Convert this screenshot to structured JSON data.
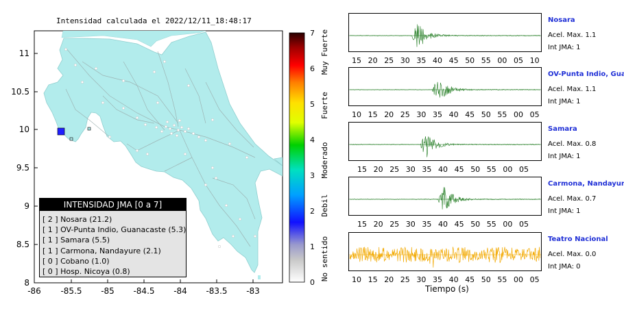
{
  "map": {
    "title": "Intensidad calculada el 2022/12/11_18:48:17",
    "x_ticks": [
      "-86",
      "-85.5",
      "-85",
      "-84.5",
      "-84",
      "-83.5",
      "-83"
    ],
    "y_ticks": [
      "11",
      "10.5",
      "10",
      "9.5",
      "9",
      "8.5",
      "8"
    ],
    "legend_title": "INTENSIDAD JMA [0 a 7]",
    "legend_items": [
      "[ 2 ]  Nosara (21.2)",
      "[ 1 ]  OV-Punta Indio, Guanacaste (5.3)",
      "[ 1 ]  Samara (5.5)",
      "[ 1 ]  Carmona, Nandayure (2.1)",
      "[ 0 ]  Cobano (1.0)",
      "[ 0 ]  Hosp. Nicoya (0.8)"
    ],
    "land_color": "#b2ecec",
    "marked_station_color": "#1f1fff"
  },
  "colorbar": {
    "ticks": [
      "7",
      "6",
      "5",
      "4",
      "3",
      "2",
      "1",
      "0"
    ],
    "labels": [
      "Muy Fuerte",
      "Fuerte",
      "Moderado",
      "Debil",
      "No sentido"
    ]
  },
  "stations": [
    {
      "name": "Nosara",
      "acel": "Acel. Max. 1.1",
      "int": "Int JMA: 1",
      "ticks": [
        "15",
        "20",
        "25",
        "30",
        "35",
        "40",
        "45",
        "50",
        "55",
        "00",
        "05",
        "10"
      ],
      "color": "#1f7a1f"
    },
    {
      "name": "OV-Punta Indio, Guana",
      "acel": "Acel. Max. 1.1",
      "int": "Int JMA: 1",
      "ticks": [
        "10",
        "15",
        "20",
        "25",
        "30",
        "35",
        "40",
        "45",
        "50",
        "55",
        "00",
        "05"
      ],
      "color": "#1f7a1f"
    },
    {
      "name": "Samara",
      "acel": "Acel. Max. 0.8",
      "int": "Int JMA: 1",
      "ticks": [
        "15",
        "20",
        "25",
        "30",
        "35",
        "40",
        "45",
        "50",
        "55",
        "00",
        "05"
      ],
      "color": "#1f7a1f"
    },
    {
      "name": "Carmona, Nandayure",
      "acel": "Acel. Max. 0.7",
      "int": "Int JMA: 1",
      "ticks": [
        "15",
        "20",
        "25",
        "30",
        "35",
        "40",
        "45",
        "50",
        "55",
        "00",
        "05"
      ],
      "color": "#1f7a1f"
    },
    {
      "name": "Teatro Nacional",
      "acel": "Acel. Max. 0.0",
      "int": "Int JMA: 0",
      "ticks": [
        "10",
        "15",
        "20",
        "25",
        "30",
        "35",
        "40",
        "45",
        "50",
        "55",
        "00",
        "05"
      ],
      "color": "#f2a900"
    }
  ],
  "xlabel": "Tiempo (s)",
  "chart_data": [
    {
      "type": "map",
      "title": "Intensidad calculada el 2022/12/11_18:48:17",
      "xlim": [
        -86,
        -82.6
      ],
      "ylim": [
        8,
        11.3
      ],
      "legend": [
        {
          "station": "Nosara",
          "intensity": 2,
          "value": 21.2
        },
        {
          "station": "OV-Punta Indio, Guanacaste",
          "intensity": 1,
          "value": 5.3
        },
        {
          "station": "Samara",
          "intensity": 1,
          "value": 5.5
        },
        {
          "station": "Carmona, Nandayure",
          "intensity": 1,
          "value": 2.1
        },
        {
          "station": "Cobano",
          "intensity": 0,
          "value": 1.0
        },
        {
          "station": "Hosp. Nicoya",
          "intensity": 0,
          "value": 0.8
        }
      ],
      "colorbar_range": [
        0,
        7
      ]
    },
    {
      "type": "line",
      "xlabel": "Tiempo (s)",
      "series": [
        {
          "name": "Nosara",
          "acel_max": 1.1,
          "int_jma": 1
        },
        {
          "name": "OV-Punta Indio, Guana",
          "acel_max": 1.1,
          "int_jma": 1
        },
        {
          "name": "Samara",
          "acel_max": 0.8,
          "int_jma": 1
        },
        {
          "name": "Carmona, Nandayure",
          "acel_max": 0.7,
          "int_jma": 1
        },
        {
          "name": "Teatro Nacional",
          "acel_max": 0.0,
          "int_jma": 0
        }
      ]
    }
  ]
}
